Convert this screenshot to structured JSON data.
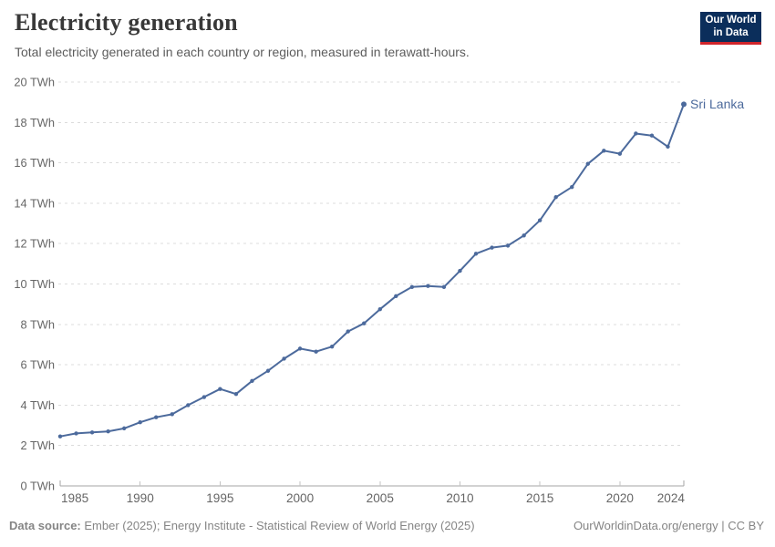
{
  "header": {
    "title": "Electricity generation",
    "subtitle": "Total electricity generated in each country or region, measured in terawatt-hours.",
    "logo": {
      "line1": "Our World",
      "line2": "in Data",
      "bg": "#0b2e5b",
      "accent": "#d1252b"
    }
  },
  "footer": {
    "source_label": "Data source:",
    "source_text": " Ember (2025); Energy Institute - Statistical Review of World Energy (2025)",
    "credit": "OurWorldinData.org/energy | CC BY"
  },
  "colors": {
    "line": "#4C6A9C",
    "axis": "#a5a5a5",
    "tick": "#c3c3c3",
    "grid": "#dcdcdc",
    "tick_text": "#666666"
  },
  "chart_data": {
    "type": "line",
    "title": "Electricity generation",
    "subtitle": "Total electricity generated in each country or region, measured in terawatt-hours.",
    "ylabel": "",
    "xlabel": "",
    "unit": "TWh",
    "y_tick_suffix": " TWh",
    "xlim": [
      1985,
      2024
    ],
    "ylim": [
      0,
      20
    ],
    "x_ticks": [
      1985,
      1990,
      1995,
      2000,
      2005,
      2010,
      2015,
      2020,
      2024
    ],
    "y_ticks": [
      0,
      2,
      4,
      6,
      8,
      10,
      12,
      14,
      16,
      18,
      20
    ],
    "grid": "horizontal-dashed",
    "legend_position": "end-of-line-label",
    "x": [
      1985,
      1986,
      1987,
      1988,
      1989,
      1990,
      1991,
      1992,
      1993,
      1994,
      1995,
      1996,
      1997,
      1998,
      1999,
      2000,
      2001,
      2002,
      2003,
      2004,
      2005,
      2006,
      2007,
      2008,
      2009,
      2010,
      2011,
      2012,
      2013,
      2014,
      2015,
      2016,
      2017,
      2018,
      2019,
      2020,
      2021,
      2022,
      2023,
      2024
    ],
    "series": [
      {
        "name": "Sri Lanka",
        "color": "#4C6A9C",
        "values": [
          2.45,
          2.6,
          2.65,
          2.7,
          2.85,
          3.15,
          3.4,
          3.55,
          4.0,
          4.4,
          4.8,
          4.55,
          5.2,
          5.7,
          6.3,
          6.8,
          6.65,
          6.9,
          7.65,
          8.05,
          8.75,
          9.4,
          9.85,
          9.9,
          9.85,
          10.65,
          11.5,
          11.8,
          11.9,
          12.4,
          13.15,
          14.3,
          14.8,
          15.95,
          16.6,
          16.45,
          17.45,
          17.35,
          16.8,
          18.9
        ]
      }
    ]
  }
}
